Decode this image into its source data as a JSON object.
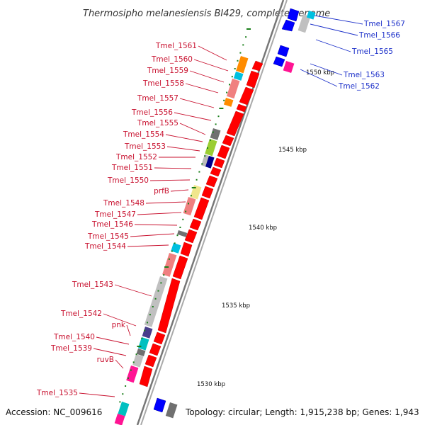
{
  "title": "Thermosipho melanesiensis BI429, complete genome",
  "accession": "Accession: NC_009616",
  "topology": "Topology: circular; Length: 1,915,238 bp; Genes: 1,943",
  "colors": {
    "forward": "#ff0000",
    "reverse": "#0000ff",
    "left_label": "#c8102e",
    "right_label": "#1b2fc9",
    "tick": "#1a7f1a",
    "backbone": "#8c8c8c"
  },
  "left_labels": [
    {
      "id": "Tmel_1561",
      "text": "Tmel_1561"
    },
    {
      "id": "Tmel_1560",
      "text": "Tmel_1560"
    },
    {
      "id": "Tmel_1559",
      "text": "Tmel_1559"
    },
    {
      "id": "Tmel_1558",
      "text": "Tmel_1558"
    },
    {
      "id": "Tmel_1557",
      "text": "Tmel_1557"
    },
    {
      "id": "Tmel_1556",
      "text": "Tmel_1556"
    },
    {
      "id": "Tmel_1555",
      "text": "Tmel_1555"
    },
    {
      "id": "Tmel_1554",
      "text": "Tmel_1554"
    },
    {
      "id": "Tmel_1553",
      "text": "Tmel_1553"
    },
    {
      "id": "Tmel_1552",
      "text": "Tmel_1552"
    },
    {
      "id": "Tmel_1551",
      "text": "Tmel_1551"
    },
    {
      "id": "Tmel_1550",
      "text": "Tmel_1550"
    },
    {
      "id": "prfB",
      "text": "prfB"
    },
    {
      "id": "Tmel_1548",
      "text": "Tmel_1548"
    },
    {
      "id": "Tmel_1547",
      "text": "Tmel_1547"
    },
    {
      "id": "Tmel_1546",
      "text": "Tmel_1546"
    },
    {
      "id": "Tmel_1545",
      "text": "Tmel_1545"
    },
    {
      "id": "Tmel_1544",
      "text": "Tmel_1544"
    },
    {
      "id": "Tmel_1543",
      "text": "Tmel_1543"
    },
    {
      "id": "Tmel_1542",
      "text": "Tmel_1542"
    },
    {
      "id": "pnk",
      "text": "pnk"
    },
    {
      "id": "Tmel_1540",
      "text": "Tmel_1540"
    },
    {
      "id": "Tmel_1539",
      "text": "Tmel_1539"
    },
    {
      "id": "ruvB",
      "text": "ruvB"
    },
    {
      "id": "Tmel_1535",
      "text": "Tmel_1535"
    }
  ],
  "right_labels": [
    {
      "id": "Tmel_1567",
      "text": "Tmel_1567"
    },
    {
      "id": "Tmel_1566",
      "text": "Tmel_1566"
    },
    {
      "id": "Tmel_1565",
      "text": "Tmel_1565"
    },
    {
      "id": "Tmel_1563",
      "text": "Tmel_1563"
    },
    {
      "id": "Tmel_1562",
      "text": "Tmel_1562"
    }
  ],
  "scale_ticks": [
    {
      "label": "1550 kbp"
    },
    {
      "label": "1545 kbp"
    },
    {
      "label": "1540 kbp"
    },
    {
      "label": "1535 kbp"
    },
    {
      "label": "1530 kbp"
    }
  ]
}
